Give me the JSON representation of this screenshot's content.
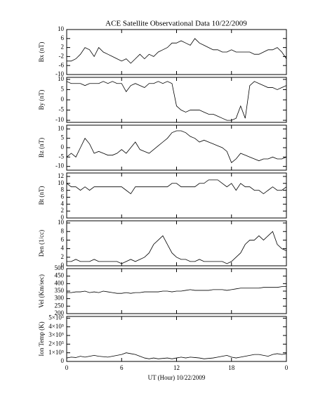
{
  "chart_data": [
    {
      "type": "line",
      "title": "ACE Satellite Observational Data   10/22/2009",
      "ylabel": "Bx (nT)",
      "ylim": [
        -10,
        10
      ],
      "yticks": [
        -10,
        -6,
        -2,
        2,
        6,
        10
      ],
      "x": [
        0,
        0.5,
        1,
        1.5,
        2,
        2.5,
        3,
        3.5,
        4,
        4.5,
        5,
        5.5,
        6,
        6.5,
        7,
        7.5,
        8,
        8.5,
        9,
        9.5,
        10,
        10.5,
        11,
        11.5,
        12,
        12.5,
        13,
        13.5,
        14,
        14.5,
        15,
        15.5,
        16,
        16.5,
        17,
        17.5,
        18,
        18.5,
        19,
        19.5,
        20,
        20.5,
        21,
        21.5,
        22,
        22.5,
        23,
        23.5,
        24
      ],
      "values": [
        -4,
        -4,
        -3,
        -1,
        2,
        1,
        -2,
        2,
        0,
        -1,
        -2,
        -3,
        -4,
        -3,
        -5,
        -3,
        -1,
        -3,
        -1,
        -2,
        0,
        1,
        2,
        4,
        4,
        5,
        4,
        3,
        6,
        4,
        3,
        2,
        1,
        1,
        0,
        0,
        1,
        0,
        0,
        0,
        0,
        -1,
        -1,
        0,
        1,
        1,
        2,
        0,
        -3
      ]
    },
    {
      "type": "line",
      "ylabel": "By (nT)",
      "ylim": [
        -11,
        11
      ],
      "yticks": [
        -10,
        -5,
        0,
        5,
        10
      ],
      "x": [
        0,
        0.5,
        1,
        1.5,
        2,
        2.5,
        3,
        3.5,
        4,
        4.5,
        5,
        5.5,
        6,
        6.5,
        7,
        7.5,
        8,
        8.5,
        9,
        9.5,
        10,
        10.5,
        11,
        11.5,
        12,
        12.5,
        13,
        13.5,
        14,
        14.5,
        15,
        15.5,
        16,
        16.5,
        17,
        17.5,
        18,
        18.5,
        19,
        19.5,
        20,
        20.5,
        21,
        21.5,
        22,
        22.5,
        23,
        23.5,
        24
      ],
      "values": [
        9,
        8,
        8,
        8,
        7,
        8,
        8,
        8,
        9,
        8,
        9,
        8,
        8,
        4,
        7,
        8,
        7,
        6,
        8,
        8,
        9,
        8,
        9,
        8,
        -3,
        -5,
        -6,
        -5,
        -5,
        -5,
        -6,
        -7,
        -7,
        -8,
        -9,
        -10,
        -10,
        -9,
        -3,
        -9,
        7,
        9,
        8,
        7,
        6,
        6,
        5,
        6,
        7
      ]
    },
    {
      "type": "line",
      "ylabel": "Bz (nT)",
      "ylim": [
        -12,
        12
      ],
      "yticks": [
        -10,
        -5,
        0,
        5,
        10
      ],
      "x": [
        0,
        0.5,
        1,
        1.5,
        2,
        2.5,
        3,
        3.5,
        4,
        4.5,
        5,
        5.5,
        6,
        6.5,
        7,
        7.5,
        8,
        8.5,
        9,
        9.5,
        10,
        10.5,
        11,
        11.5,
        12,
        12.5,
        13,
        13.5,
        14,
        14.5,
        15,
        15.5,
        16,
        16.5,
        17,
        17.5,
        18,
        18.5,
        19,
        19.5,
        20,
        20.5,
        21,
        21.5,
        22,
        22.5,
        23,
        23.5,
        24
      ],
      "values": [
        -5,
        -3,
        -5,
        0,
        5,
        2,
        -3,
        -2,
        -3,
        -4,
        -4,
        -3,
        -1,
        -3,
        0,
        3,
        -1,
        -2,
        -3,
        -1,
        1,
        3,
        5,
        8,
        9,
        9,
        8,
        6,
        5,
        3,
        4,
        3,
        2,
        1,
        0,
        -2,
        -8,
        -6,
        -3,
        -4,
        -5,
        -6,
        -7,
        -6,
        -6,
        -5,
        -6,
        -6,
        -5
      ]
    },
    {
      "type": "line",
      "ylabel": "Bt (nT)",
      "ylim": [
        0,
        13
      ],
      "yticks": [
        0,
        2,
        4,
        6,
        8,
        10,
        12
      ],
      "x": [
        0,
        0.5,
        1,
        1.5,
        2,
        2.5,
        3,
        3.5,
        4,
        4.5,
        5,
        5.5,
        6,
        6.5,
        7,
        7.5,
        8,
        8.5,
        9,
        9.5,
        10,
        10.5,
        11,
        11.5,
        12,
        12.5,
        13,
        13.5,
        14,
        14.5,
        15,
        15.5,
        16,
        16.5,
        17,
        17.5,
        18,
        18.5,
        19,
        19.5,
        20,
        20.5,
        21,
        21.5,
        22,
        22.5,
        23,
        23.5,
        24
      ],
      "values": [
        10,
        9,
        9,
        8,
        9,
        8,
        9,
        9,
        9,
        9,
        9,
        9,
        9,
        8,
        7,
        9,
        9,
        9,
        9,
        9,
        9,
        9,
        9,
        10,
        10,
        9,
        9,
        9,
        9,
        10,
        10,
        11,
        11,
        11,
        10,
        9,
        10,
        8,
        10,
        9,
        9,
        8,
        8,
        7,
        8,
        9,
        8,
        8,
        9
      ]
    },
    {
      "type": "line",
      "ylabel": "Den (1/cc)",
      "ylim": [
        0,
        10.5
      ],
      "yticks": [
        0,
        2,
        4,
        6,
        8,
        10
      ],
      "x": [
        0,
        0.5,
        1,
        1.5,
        2,
        2.5,
        3,
        3.5,
        4,
        4.5,
        5,
        5.5,
        6,
        6.5,
        7,
        7.5,
        8,
        8.5,
        9,
        9.5,
        10,
        10.5,
        11,
        11.5,
        12,
        12.5,
        13,
        13.5,
        14,
        14.5,
        15,
        15.5,
        16,
        16.5,
        17,
        17.5,
        18,
        18.5,
        19,
        19.5,
        20,
        20.5,
        21,
        21.5,
        22,
        22.5,
        23,
        23.5,
        24
      ],
      "values": [
        1,
        1,
        1.5,
        1,
        1,
        1,
        1.5,
        1,
        1,
        1,
        1,
        1,
        0.5,
        1,
        1.5,
        1,
        1.5,
        2,
        3,
        5,
        6,
        7,
        5,
        3,
        2,
        1.5,
        1.5,
        1,
        1,
        1.5,
        1,
        1,
        1,
        1,
        1,
        0.5,
        1,
        2,
        3,
        5,
        6,
        6,
        7,
        6,
        7,
        8,
        5,
        4,
        3.5
      ]
    },
    {
      "type": "line",
      "ylabel": "Vel (Km/sec)",
      "ylim": [
        200,
        500
      ],
      "yticks": [
        200,
        250,
        300,
        350,
        400,
        450,
        500
      ],
      "x": [
        0,
        0.5,
        1,
        1.5,
        2,
        2.5,
        3,
        3.5,
        4,
        4.5,
        5,
        5.5,
        6,
        6.5,
        7,
        7.5,
        8,
        8.5,
        9,
        9.5,
        10,
        10.5,
        11,
        11.5,
        12,
        12.5,
        13,
        13.5,
        14,
        14.5,
        15,
        15.5,
        16,
        16.5,
        17,
        17.5,
        18,
        18.5,
        19,
        19.5,
        20,
        20.5,
        21,
        21.5,
        22,
        22.5,
        23,
        23.5,
        24
      ],
      "values": [
        340,
        340,
        345,
        345,
        350,
        340,
        345,
        340,
        350,
        345,
        340,
        335,
        335,
        340,
        335,
        340,
        340,
        345,
        345,
        345,
        345,
        350,
        350,
        345,
        350,
        350,
        355,
        360,
        355,
        355,
        355,
        355,
        360,
        360,
        360,
        355,
        360,
        365,
        370,
        370,
        370,
        370,
        370,
        375,
        375,
        375,
        375,
        380,
        380
      ]
    },
    {
      "type": "line",
      "ylabel": "Ion Temp (K)",
      "ylim": [
        0,
        520000
      ],
      "yticks": [
        0,
        {
          "value": 100000,
          "label": "1×10⁵"
        },
        {
          "value": 200000,
          "label": "2×10⁵"
        },
        {
          "value": 300000,
          "label": "3×10⁵"
        },
        {
          "value": 400000,
          "label": "4×10⁵"
        },
        {
          "value": 500000,
          "label": "5×10⁵"
        }
      ],
      "xlabel": "UT (Hour)  10/22/2009",
      "xlim": [
        0,
        24
      ],
      "xticks": [
        0,
        6,
        12,
        18,
        {
          "value": 24,
          "label": "0"
        }
      ],
      "x": [
        0,
        0.5,
        1,
        1.5,
        2,
        2.5,
        3,
        3.5,
        4,
        4.5,
        5,
        5.5,
        6,
        6.5,
        7,
        7.5,
        8,
        8.5,
        9,
        9.5,
        10,
        10.5,
        11,
        11.5,
        12,
        12.5,
        13,
        13.5,
        14,
        14.5,
        15,
        15.5,
        16,
        16.5,
        17,
        17.5,
        18,
        18.5,
        19,
        19.5,
        20,
        20.5,
        21,
        21.5,
        22,
        22.5,
        23,
        23.5,
        24
      ],
      "values": [
        40000,
        50000,
        45000,
        60000,
        50000,
        60000,
        70000,
        60000,
        55000,
        50000,
        60000,
        70000,
        80000,
        100000,
        90000,
        80000,
        60000,
        40000,
        30000,
        40000,
        30000,
        35000,
        40000,
        30000,
        40000,
        50000,
        40000,
        50000,
        45000,
        40000,
        30000,
        35000,
        40000,
        50000,
        60000,
        70000,
        50000,
        40000,
        50000,
        60000,
        70000,
        80000,
        80000,
        70000,
        60000,
        80000,
        90000,
        80000,
        90000
      ]
    }
  ]
}
